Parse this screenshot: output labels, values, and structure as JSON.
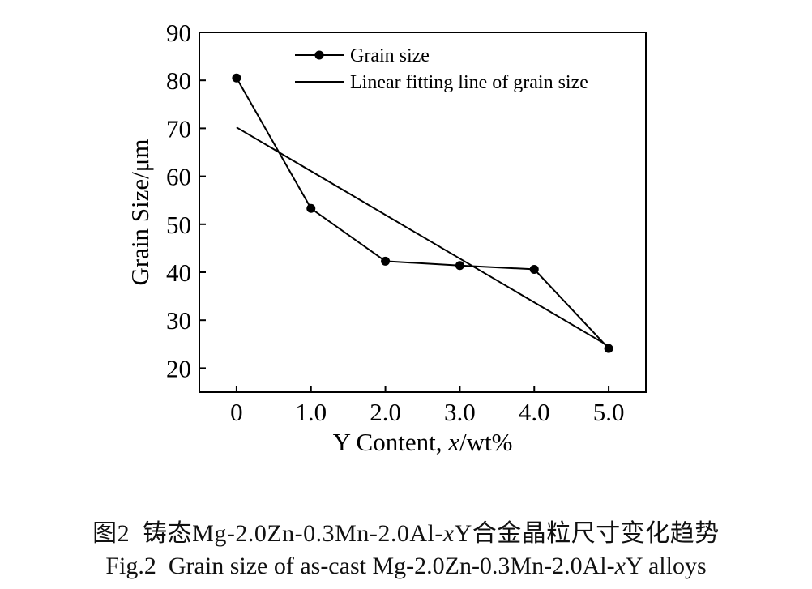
{
  "chart_data": {
    "type": "line",
    "xlabel_prefix": "Y Content, ",
    "xlabel_var": "x",
    "xlabel_suffix": "/wt%",
    "ylabel": "Grain Size/μm",
    "xlim": [
      -0.5,
      5.5
    ],
    "ylim": [
      15,
      90
    ],
    "x_ticks": [
      0,
      1,
      2,
      3,
      4,
      5
    ],
    "x_tick_labels": [
      "0",
      "1.0",
      "2.0",
      "3.0",
      "4.0",
      "5.0"
    ],
    "y_ticks": [
      20,
      30,
      40,
      50,
      60,
      70,
      80,
      90
    ],
    "y_tick_labels": [
      "20",
      "30",
      "40",
      "50",
      "60",
      "70",
      "80",
      "90"
    ],
    "grid": false,
    "legend_position": "top-right",
    "series": [
      {
        "name": "Grain size",
        "style": "line-marker",
        "x": [
          0,
          1,
          2,
          3,
          4,
          5
        ],
        "values": [
          80.5,
          53.3,
          42.3,
          41.4,
          40.6,
          24.1
        ]
      },
      {
        "name": "Linear fitting line of grain size",
        "style": "line",
        "x": [
          0,
          5
        ],
        "values": [
          70.2,
          24.6
        ]
      }
    ],
    "color": "#000000"
  },
  "caption": {
    "cn_fig": "图2",
    "cn_text": "铸态Mg-2.0Zn-0.3Mn-2.0Al-",
    "cn_var": "x",
    "cn_tail": "Y合金晶粒尺寸变化趋势",
    "en_fig": "Fig.2",
    "en_text": "Grain size of as-cast Mg-2.0Zn-0.3Mn-2.0Al-",
    "en_var": "x",
    "en_tail": "Y alloys"
  }
}
